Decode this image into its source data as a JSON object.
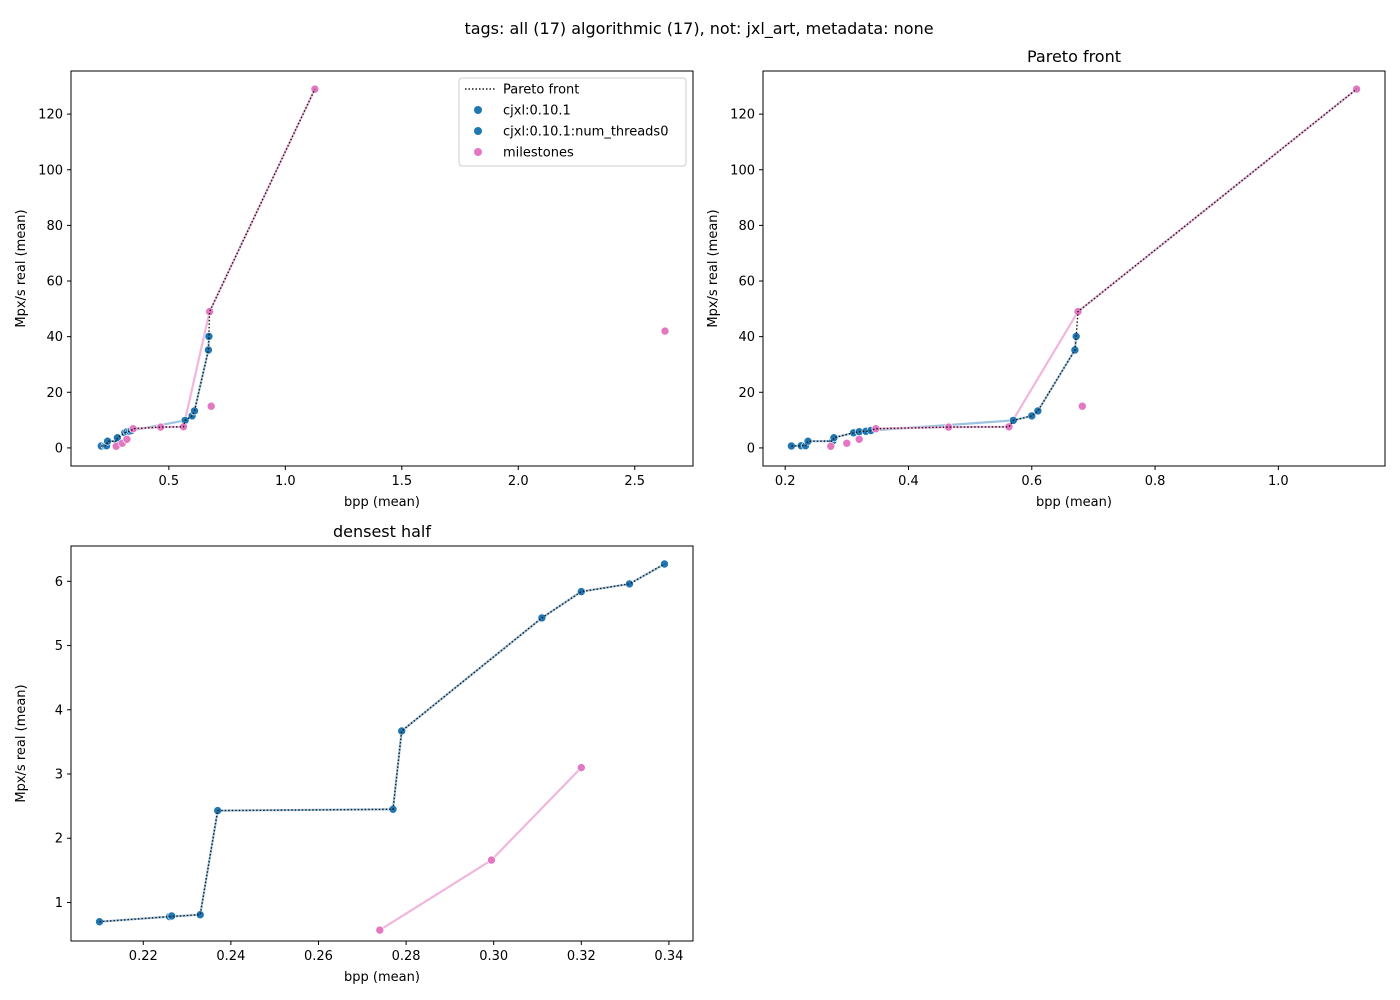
{
  "suptitle": "tags: all (17) algorithmic (17), not: jxl_art, metadata: none",
  "colors": {
    "series_blue": "#1f77b4",
    "series_pink": "#e377c2",
    "line_blue": "#9ec3df",
    "line_pink": "#f0b6dd",
    "pareto": "#1a1a1a",
    "axis": "#000000"
  },
  "legend": {
    "placement": "upper right of first panel",
    "entries": [
      {
        "label": "Pareto front",
        "style": "dotted-line"
      },
      {
        "label": "cjxl:0.10.1",
        "style": "marker-blue"
      },
      {
        "label": "cjxl:0.10.1:num_threads0",
        "style": "marker-blue"
      },
      {
        "label": "milestones",
        "style": "marker-pink"
      }
    ]
  },
  "chart_data": [
    {
      "type": "scatter",
      "title": "",
      "xlabel": "bpp (mean)",
      "ylabel": "Mpx/s real (mean)",
      "xlim": [
        0.08,
        2.75
      ],
      "ylim": [
        -6.5,
        135.5
      ],
      "xticks": [
        "0.5",
        "1.0",
        "1.5",
        "2.0",
        "2.5"
      ],
      "yticks": [
        "0",
        "20",
        "40",
        "60",
        "80",
        "100",
        "120"
      ],
      "grid": false,
      "series": [
        {
          "name": "cjxl:0.10.1",
          "color": "blue",
          "points": [
            [
              0.21,
              0.7
            ],
            [
              0.226,
              0.78
            ],
            [
              0.233,
              0.81
            ],
            [
              0.237,
              2.43
            ],
            [
              0.277,
              2.45
            ],
            [
              0.279,
              3.67
            ],
            [
              0.311,
              5.43
            ],
            [
              0.32,
              5.84
            ],
            [
              0.331,
              5.96
            ],
            [
              0.339,
              6.27
            ],
            [
              0.57,
              9.9
            ],
            [
              0.6,
              11.5
            ],
            [
              0.61,
              13.3
            ],
            [
              0.67,
              35.2
            ],
            [
              0.672,
              40.1
            ]
          ]
        },
        {
          "name": "cjxl:0.10.1:num_threads0",
          "color": "blue",
          "points": [
            [
              0.21,
              0.7
            ],
            [
              0.226,
              0.78
            ],
            [
              0.233,
              0.81
            ],
            [
              0.237,
              2.43
            ],
            [
              0.277,
              2.45
            ],
            [
              0.279,
              3.67
            ],
            [
              0.311,
              5.43
            ],
            [
              0.32,
              5.84
            ],
            [
              0.331,
              5.96
            ],
            [
              0.339,
              6.27
            ],
            [
              0.57,
              9.9
            ],
            [
              0.6,
              11.5
            ],
            [
              0.61,
              13.3
            ],
            [
              0.67,
              35.2
            ],
            [
              0.672,
              40.1
            ]
          ]
        },
        {
          "name": "milestones",
          "color": "pink",
          "points": [
            [
              0.274,
              0.57
            ],
            [
              0.3,
              1.66
            ],
            [
              0.32,
              3.1
            ],
            [
              0.347,
              6.9
            ],
            [
              0.465,
              7.5
            ],
            [
              0.563,
              7.6
            ],
            [
              0.675,
              49.0
            ],
            [
              0.682,
              15.0
            ],
            [
              1.127,
              129.0
            ],
            [
              2.63,
              42.0
            ]
          ]
        }
      ],
      "connecting_lines": [
        {
          "color": "blue",
          "points": [
            [
              0.21,
              0.7
            ],
            [
              0.226,
              0.78
            ],
            [
              0.233,
              0.81
            ],
            [
              0.237,
              2.43
            ],
            [
              0.277,
              2.45
            ],
            [
              0.279,
              3.67
            ],
            [
              0.311,
              5.43
            ],
            [
              0.32,
              5.84
            ],
            [
              0.331,
              5.96
            ],
            [
              0.339,
              6.27
            ],
            [
              0.57,
              9.9
            ],
            [
              0.6,
              11.5
            ],
            [
              0.61,
              13.3
            ],
            [
              0.67,
              35.2
            ],
            [
              0.672,
              40.1
            ]
          ]
        },
        {
          "color": "pink",
          "points": [
            [
              0.274,
              0.57
            ],
            [
              0.3,
              1.66
            ],
            [
              0.32,
              3.1
            ],
            [
              0.347,
              6.9
            ],
            [
              0.465,
              7.5
            ],
            [
              0.563,
              7.6
            ],
            [
              0.675,
              49.0
            ],
            [
              1.127,
              129.0
            ]
          ]
        }
      ],
      "pareto_front": [
        [
          0.21,
          0.7
        ],
        [
          0.226,
          0.78
        ],
        [
          0.233,
          0.81
        ],
        [
          0.237,
          2.43
        ],
        [
          0.277,
          2.45
        ],
        [
          0.279,
          3.67
        ],
        [
          0.311,
          5.43
        ],
        [
          0.32,
          5.84
        ],
        [
          0.331,
          5.96
        ],
        [
          0.339,
          6.27
        ],
        [
          0.347,
          6.9
        ],
        [
          0.465,
          7.5
        ],
        [
          0.563,
          7.6
        ],
        [
          0.57,
          9.9
        ],
        [
          0.6,
          11.5
        ],
        [
          0.61,
          13.3
        ],
        [
          0.67,
          35.2
        ],
        [
          0.672,
          40.1
        ],
        [
          0.675,
          49.0
        ],
        [
          1.127,
          129.0
        ]
      ]
    },
    {
      "type": "scatter",
      "title": "Pareto front",
      "xlabel": "bpp (mean)",
      "ylabel": "Mpx/s real (mean)",
      "xlim": [
        0.164,
        1.173
      ],
      "ylim": [
        -6.5,
        135.5
      ],
      "xticks": [
        "0.2",
        "0.4",
        "0.6",
        "0.8",
        "1.0"
      ],
      "yticks": [
        "0",
        "20",
        "40",
        "60",
        "80",
        "100",
        "120"
      ],
      "grid": false,
      "series": [
        {
          "name": "cjxl:0.10.1",
          "color": "blue",
          "points": [
            [
              0.21,
              0.7
            ],
            [
              0.226,
              0.78
            ],
            [
              0.233,
              0.81
            ],
            [
              0.237,
              2.43
            ],
            [
              0.277,
              2.45
            ],
            [
              0.279,
              3.67
            ],
            [
              0.311,
              5.43
            ],
            [
              0.32,
              5.84
            ],
            [
              0.331,
              5.96
            ],
            [
              0.339,
              6.27
            ],
            [
              0.57,
              9.9
            ],
            [
              0.6,
              11.5
            ],
            [
              0.61,
              13.3
            ],
            [
              0.67,
              35.2
            ],
            [
              0.672,
              40.1
            ]
          ]
        },
        {
          "name": "milestones",
          "color": "pink",
          "points": [
            [
              0.274,
              0.57
            ],
            [
              0.3,
              1.66
            ],
            [
              0.32,
              3.1
            ],
            [
              0.347,
              6.9
            ],
            [
              0.465,
              7.5
            ],
            [
              0.563,
              7.6
            ],
            [
              0.675,
              49.0
            ],
            [
              0.682,
              15.0
            ],
            [
              1.127,
              129.0
            ]
          ]
        }
      ],
      "connecting_lines": [
        {
          "color": "blue",
          "points": [
            [
              0.21,
              0.7
            ],
            [
              0.226,
              0.78
            ],
            [
              0.233,
              0.81
            ],
            [
              0.237,
              2.43
            ],
            [
              0.277,
              2.45
            ],
            [
              0.279,
              3.67
            ],
            [
              0.311,
              5.43
            ],
            [
              0.32,
              5.84
            ],
            [
              0.331,
              5.96
            ],
            [
              0.339,
              6.27
            ],
            [
              0.57,
              9.9
            ],
            [
              0.6,
              11.5
            ],
            [
              0.61,
              13.3
            ],
            [
              0.67,
              35.2
            ],
            [
              0.672,
              40.1
            ]
          ]
        },
        {
          "color": "pink",
          "points": [
            [
              0.347,
              6.9
            ],
            [
              0.465,
              7.5
            ],
            [
              0.563,
              7.6
            ],
            [
              0.675,
              49.0
            ],
            [
              1.127,
              129.0
            ]
          ]
        }
      ],
      "pareto_front": [
        [
          0.21,
          0.7
        ],
        [
          0.226,
          0.78
        ],
        [
          0.233,
          0.81
        ],
        [
          0.237,
          2.43
        ],
        [
          0.277,
          2.45
        ],
        [
          0.279,
          3.67
        ],
        [
          0.311,
          5.43
        ],
        [
          0.32,
          5.84
        ],
        [
          0.331,
          5.96
        ],
        [
          0.339,
          6.27
        ],
        [
          0.347,
          6.9
        ],
        [
          0.465,
          7.5
        ],
        [
          0.563,
          7.6
        ],
        [
          0.57,
          9.9
        ],
        [
          0.6,
          11.5
        ],
        [
          0.61,
          13.3
        ],
        [
          0.67,
          35.2
        ],
        [
          0.672,
          40.1
        ],
        [
          0.675,
          49.0
        ],
        [
          1.127,
          129.0
        ]
      ]
    },
    {
      "type": "scatter",
      "title": "densest half",
      "xlabel": "bpp (mean)",
      "ylabel": "Mpx/s real (mean)",
      "xlim": [
        0.2035,
        0.3455
      ],
      "ylim": [
        0.4,
        6.55
      ],
      "xticks": [
        "0.22",
        "0.24",
        "0.26",
        "0.28",
        "0.30",
        "0.32",
        "0.34"
      ],
      "yticks": [
        "1",
        "2",
        "3",
        "4",
        "5",
        "6"
      ],
      "grid": false,
      "series": [
        {
          "name": "cjxl:0.10.1",
          "color": "blue",
          "points": [
            [
              0.21,
              0.7
            ],
            [
              0.226,
              0.78
            ],
            [
              0.2265,
              0.79
            ],
            [
              0.233,
              0.81
            ],
            [
              0.237,
              2.43
            ],
            [
              0.277,
              2.45
            ],
            [
              0.279,
              3.67
            ],
            [
              0.311,
              5.43
            ],
            [
              0.32,
              5.84
            ],
            [
              0.331,
              5.96
            ],
            [
              0.339,
              6.27
            ]
          ]
        },
        {
          "name": "milestones",
          "color": "pink",
          "points": [
            [
              0.274,
              0.57
            ],
            [
              0.2995,
              1.66
            ],
            [
              0.32,
              3.1
            ]
          ]
        }
      ],
      "connecting_lines": [
        {
          "color": "blue",
          "points": [
            [
              0.21,
              0.7
            ],
            [
              0.226,
              0.78
            ],
            [
              0.233,
              0.81
            ],
            [
              0.237,
              2.43
            ],
            [
              0.277,
              2.45
            ],
            [
              0.279,
              3.67
            ],
            [
              0.311,
              5.43
            ],
            [
              0.32,
              5.84
            ],
            [
              0.331,
              5.96
            ],
            [
              0.339,
              6.27
            ]
          ]
        },
        {
          "color": "pink",
          "points": [
            [
              0.274,
              0.57
            ],
            [
              0.2995,
              1.66
            ],
            [
              0.32,
              3.1
            ]
          ]
        }
      ],
      "pareto_front": [
        [
          0.21,
          0.7
        ],
        [
          0.226,
          0.78
        ],
        [
          0.233,
          0.81
        ],
        [
          0.237,
          2.43
        ],
        [
          0.277,
          2.45
        ],
        [
          0.279,
          3.67
        ],
        [
          0.311,
          5.43
        ],
        [
          0.32,
          5.84
        ],
        [
          0.331,
          5.96
        ],
        [
          0.339,
          6.27
        ]
      ]
    }
  ]
}
